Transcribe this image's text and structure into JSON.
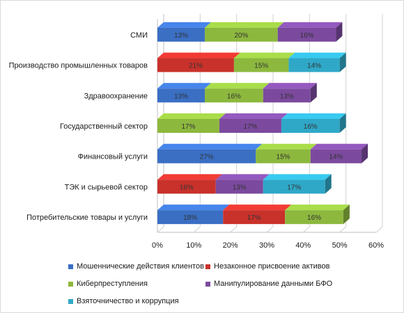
{
  "chart_data": {
    "type": "bar",
    "orientation": "horizontal",
    "stacked": true,
    "categories": [
      "СМИ",
      "Производство промышленных товаров",
      "Здравоохранение",
      "Государственный сектор",
      "Финансовый услуги",
      "ТЭК и сырьевой сектор",
      "Потребительские товары и услуги"
    ],
    "series": [
      {
        "name": "Мошеннические действия клиентов",
        "color": "#3a6fc4",
        "values": [
          13,
          0,
          13,
          0,
          27,
          0,
          18
        ]
      },
      {
        "name": "Незаконное присвоение активов",
        "color": "#c9312b",
        "values": [
          0,
          21,
          0,
          0,
          0,
          16,
          17
        ]
      },
      {
        "name": "Киберпреступления",
        "color": "#8db83e",
        "values": [
          20,
          15,
          16,
          17,
          15,
          0,
          16
        ]
      },
      {
        "name": "Манипулирование данными БФО",
        "color": "#7b4a9e",
        "values": [
          16,
          0,
          13,
          17,
          14,
          13,
          0
        ]
      },
      {
        "name": "Взяточничество и коррупция",
        "color": "#2fa8c8",
        "values": [
          0,
          14,
          0,
          16,
          0,
          17,
          0
        ]
      }
    ],
    "x_ticks": [
      "0%",
      "10%",
      "20%",
      "30%",
      "40%",
      "50%",
      "60%"
    ],
    "xlim": [
      0,
      60
    ],
    "grid": "vertical",
    "legend_position": "bottom",
    "title": "",
    "xlabel": "",
    "ylabel": ""
  }
}
